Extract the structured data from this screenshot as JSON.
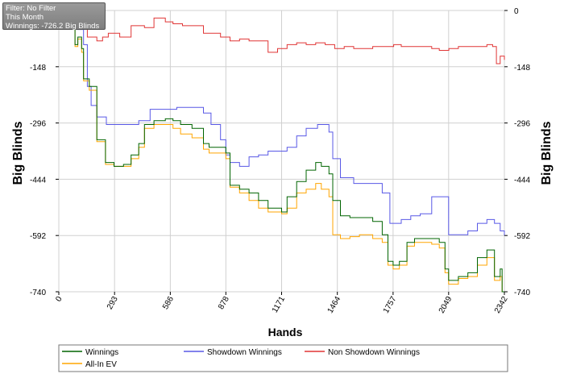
{
  "info": {
    "filter": "Filter: No Filter",
    "period": "This Month",
    "winnings": "Winnings: -726.2 Big Blinds"
  },
  "chart_data": {
    "type": "line",
    "xlabel": "Hands",
    "ylabel": "Big Blinds",
    "xlim": [
      0,
      2342
    ],
    "ylim": [
      -740,
      0
    ],
    "x_ticks": [
      "0",
      "293",
      "586",
      "878",
      "1171",
      "1464",
      "1757",
      "2049",
      "2342"
    ],
    "y_ticks": [
      "0",
      "-148",
      "-296",
      "-444",
      "-592",
      "-740"
    ],
    "grid": true,
    "legend_position": "bottom",
    "series": [
      {
        "name": "Winnings",
        "color": "#006400",
        "points": [
          [
            0,
            0
          ],
          [
            60,
            -40
          ],
          [
            85,
            -90
          ],
          [
            100,
            -70
          ],
          [
            120,
            -100
          ],
          [
            130,
            -180
          ],
          [
            160,
            -200
          ],
          [
            200,
            -340
          ],
          [
            245,
            -400
          ],
          [
            290,
            -410
          ],
          [
            340,
            -405
          ],
          [
            380,
            -380
          ],
          [
            420,
            -350
          ],
          [
            450,
            -300
          ],
          [
            500,
            -290
          ],
          [
            560,
            -285
          ],
          [
            600,
            -290
          ],
          [
            640,
            -300
          ],
          [
            700,
            -310
          ],
          [
            760,
            -350
          ],
          [
            790,
            -360
          ],
          [
            850,
            -360
          ],
          [
            878,
            -375
          ],
          [
            900,
            -460
          ],
          [
            950,
            -470
          ],
          [
            1000,
            -480
          ],
          [
            1050,
            -500
          ],
          [
            1100,
            -520
          ],
          [
            1171,
            -530
          ],
          [
            1200,
            -490
          ],
          [
            1250,
            -450
          ],
          [
            1300,
            -420
          ],
          [
            1350,
            -400
          ],
          [
            1380,
            -410
          ],
          [
            1420,
            -430
          ],
          [
            1440,
            -500
          ],
          [
            1480,
            -540
          ],
          [
            1530,
            -545
          ],
          [
            1580,
            -545
          ],
          [
            1650,
            -555
          ],
          [
            1700,
            -590
          ],
          [
            1730,
            -660
          ],
          [
            1757,
            -670
          ],
          [
            1790,
            -660
          ],
          [
            1830,
            -610
          ],
          [
            1870,
            -600
          ],
          [
            1920,
            -600
          ],
          [
            1960,
            -600
          ],
          [
            2000,
            -610
          ],
          [
            2030,
            -680
          ],
          [
            2049,
            -710
          ],
          [
            2100,
            -700
          ],
          [
            2150,
            -690
          ],
          [
            2200,
            -650
          ],
          [
            2250,
            -630
          ],
          [
            2290,
            -700
          ],
          [
            2320,
            -680
          ],
          [
            2330,
            -740
          ],
          [
            2342,
            -740
          ]
        ]
      },
      {
        "name": "All-In EV",
        "color": "#FFA500",
        "points": [
          [
            0,
            0
          ],
          [
            60,
            -40
          ],
          [
            85,
            -95
          ],
          [
            100,
            -75
          ],
          [
            120,
            -110
          ],
          [
            130,
            -185
          ],
          [
            160,
            -210
          ],
          [
            200,
            -345
          ],
          [
            245,
            -405
          ],
          [
            290,
            -410
          ],
          [
            340,
            -410
          ],
          [
            380,
            -390
          ],
          [
            420,
            -360
          ],
          [
            450,
            -310
          ],
          [
            500,
            -300
          ],
          [
            560,
            -300
          ],
          [
            600,
            -310
          ],
          [
            640,
            -325
          ],
          [
            700,
            -335
          ],
          [
            760,
            -365
          ],
          [
            790,
            -375
          ],
          [
            850,
            -375
          ],
          [
            878,
            -390
          ],
          [
            900,
            -465
          ],
          [
            950,
            -480
          ],
          [
            1000,
            -500
          ],
          [
            1050,
            -520
          ],
          [
            1100,
            -530
          ],
          [
            1171,
            -535
          ],
          [
            1200,
            -520
          ],
          [
            1250,
            -480
          ],
          [
            1300,
            -470
          ],
          [
            1350,
            -455
          ],
          [
            1380,
            -470
          ],
          [
            1420,
            -490
          ],
          [
            1440,
            -590
          ],
          [
            1480,
            -600
          ],
          [
            1530,
            -595
          ],
          [
            1580,
            -590
          ],
          [
            1650,
            -600
          ],
          [
            1700,
            -610
          ],
          [
            1730,
            -670
          ],
          [
            1757,
            -680
          ],
          [
            1790,
            -670
          ],
          [
            1830,
            -620
          ],
          [
            1870,
            -610
          ],
          [
            1920,
            -610
          ],
          [
            1960,
            -615
          ],
          [
            2000,
            -625
          ],
          [
            2030,
            -690
          ],
          [
            2049,
            -720
          ],
          [
            2100,
            -705
          ],
          [
            2150,
            -700
          ],
          [
            2200,
            -670
          ],
          [
            2250,
            -650
          ],
          [
            2290,
            -710
          ],
          [
            2320,
            -700
          ],
          [
            2330,
            -740
          ],
          [
            2342,
            -740
          ]
        ]
      },
      {
        "name": "Showdown Winnings",
        "color": "#5858E6",
        "points": [
          [
            0,
            0
          ],
          [
            70,
            -10
          ],
          [
            100,
            -50
          ],
          [
            130,
            -90
          ],
          [
            150,
            -200
          ],
          [
            170,
            -250
          ],
          [
            200,
            -280
          ],
          [
            250,
            -300
          ],
          [
            320,
            -300
          ],
          [
            370,
            -300
          ],
          [
            420,
            -290
          ],
          [
            480,
            -260
          ],
          [
            520,
            -260
          ],
          [
            620,
            -255
          ],
          [
            700,
            -255
          ],
          [
            760,
            -270
          ],
          [
            800,
            -300
          ],
          [
            850,
            -340
          ],
          [
            878,
            -380
          ],
          [
            900,
            -400
          ],
          [
            950,
            -410
          ],
          [
            1000,
            -385
          ],
          [
            1050,
            -380
          ],
          [
            1100,
            -370
          ],
          [
            1150,
            -370
          ],
          [
            1200,
            -360
          ],
          [
            1250,
            -330
          ],
          [
            1300,
            -310
          ],
          [
            1360,
            -300
          ],
          [
            1420,
            -320
          ],
          [
            1440,
            -390
          ],
          [
            1480,
            -440
          ],
          [
            1550,
            -455
          ],
          [
            1600,
            -455
          ],
          [
            1650,
            -455
          ],
          [
            1700,
            -480
          ],
          [
            1740,
            -560
          ],
          [
            1800,
            -550
          ],
          [
            1850,
            -540
          ],
          [
            1900,
            -535
          ],
          [
            1960,
            -490
          ],
          [
            2000,
            -490
          ],
          [
            2030,
            -490
          ],
          [
            2049,
            -590
          ],
          [
            2100,
            -590
          ],
          [
            2150,
            -580
          ],
          [
            2200,
            -560
          ],
          [
            2250,
            -550
          ],
          [
            2290,
            -560
          ],
          [
            2320,
            -580
          ],
          [
            2342,
            -592
          ]
        ]
      },
      {
        "name": "Non Showdown Winnings",
        "color": "#E03535",
        "points": [
          [
            0,
            0
          ],
          [
            80,
            -10
          ],
          [
            150,
            -70
          ],
          [
            200,
            -80
          ],
          [
            230,
            -70
          ],
          [
            260,
            -60
          ],
          [
            320,
            -70
          ],
          [
            380,
            -40
          ],
          [
            450,
            -45
          ],
          [
            500,
            -20
          ],
          [
            560,
            -30
          ],
          [
            600,
            -35
          ],
          [
            650,
            -40
          ],
          [
            700,
            -40
          ],
          [
            760,
            -60
          ],
          [
            800,
            -60
          ],
          [
            850,
            -70
          ],
          [
            900,
            -80
          ],
          [
            950,
            -75
          ],
          [
            1000,
            -80
          ],
          [
            1050,
            -80
          ],
          [
            1100,
            -110
          ],
          [
            1150,
            -100
          ],
          [
            1200,
            -90
          ],
          [
            1250,
            -85
          ],
          [
            1300,
            -90
          ],
          [
            1350,
            -85
          ],
          [
            1400,
            -90
          ],
          [
            1450,
            -100
          ],
          [
            1500,
            -95
          ],
          [
            1550,
            -100
          ],
          [
            1600,
            -100
          ],
          [
            1650,
            -95
          ],
          [
            1700,
            -95
          ],
          [
            1760,
            -90
          ],
          [
            1800,
            -95
          ],
          [
            1850,
            -95
          ],
          [
            1900,
            -95
          ],
          [
            1960,
            -100
          ],
          [
            2000,
            -105
          ],
          [
            2050,
            -100
          ],
          [
            2100,
            -95
          ],
          [
            2150,
            -95
          ],
          [
            2200,
            -95
          ],
          [
            2250,
            -90
          ],
          [
            2280,
            -95
          ],
          [
            2300,
            -140
          ],
          [
            2320,
            -120
          ],
          [
            2342,
            -130
          ]
        ]
      }
    ]
  }
}
